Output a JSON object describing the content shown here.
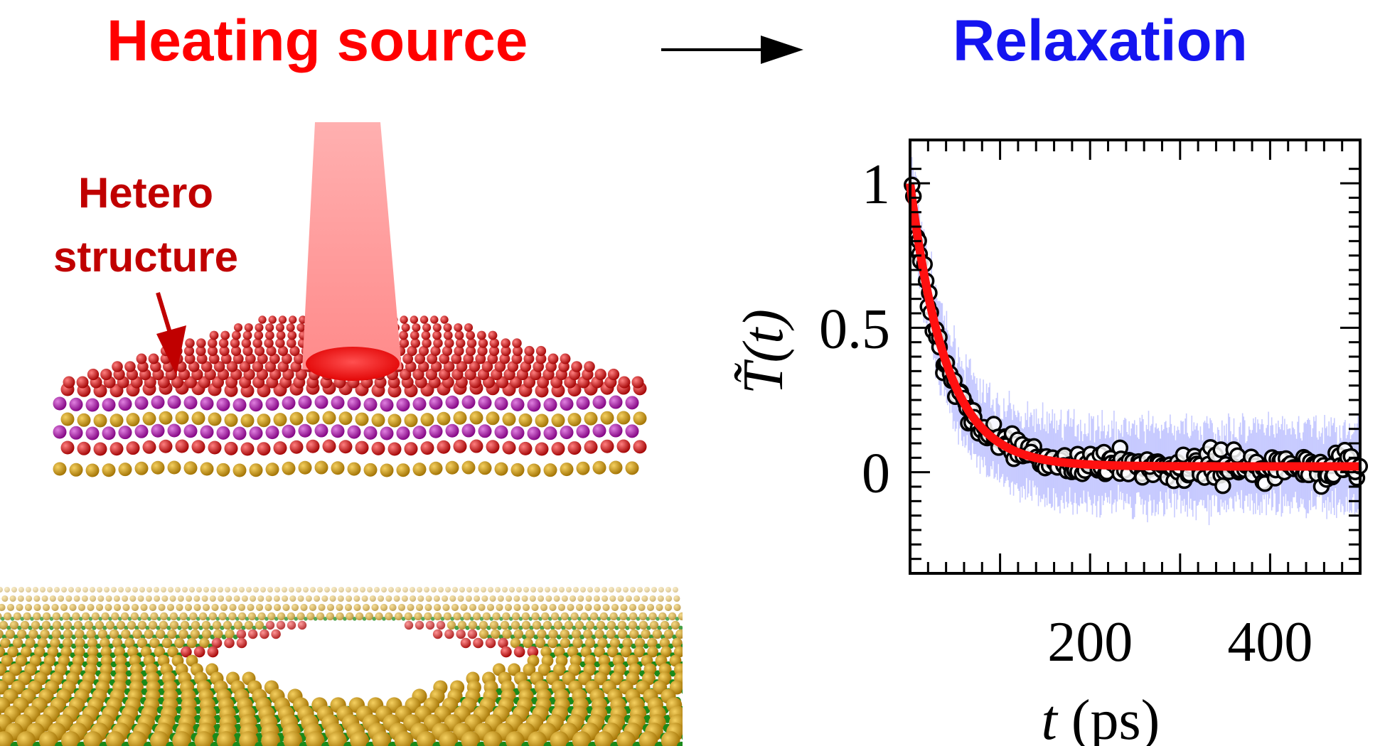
{
  "header": {
    "left_title": "Heating source",
    "right_title": "Relaxation"
  },
  "illustration": {
    "label_line1": "Hetero",
    "label_line2": "structure"
  },
  "chart_data": {
    "type": "scatter",
    "title": "",
    "xlabel_var": "t",
    "xlabel_unit": "(ps)",
    "ylabel": "T̃(t)",
    "xlim": [
      0,
      500
    ],
    "ylim": [
      -0.35,
      1.15
    ],
    "x_ticks": [
      200,
      400
    ],
    "y_ticks": [
      1,
      0.5,
      0
    ],
    "x_tick_labels": [
      "200",
      "400"
    ],
    "y_tick_labels": [
      "1",
      "0.5",
      "0"
    ],
    "fit": {
      "name": "",
      "color": "#ff1010",
      "amplitude": 1.0,
      "tau_ps": 40,
      "offset": 0.02
    },
    "data_series": {
      "name": "",
      "marker": "open-circle",
      "color": "#000000",
      "x_start": 2,
      "x_end": 500,
      "x_step": 4,
      "noise": 0.05
    },
    "error_band": {
      "color": "#9aa0ff",
      "half_width": 0.13
    }
  },
  "colors": {
    "heating": "#ff0000",
    "relaxation": "#1414f0",
    "label": "#c00000",
    "beam": "#ff9a9a"
  }
}
